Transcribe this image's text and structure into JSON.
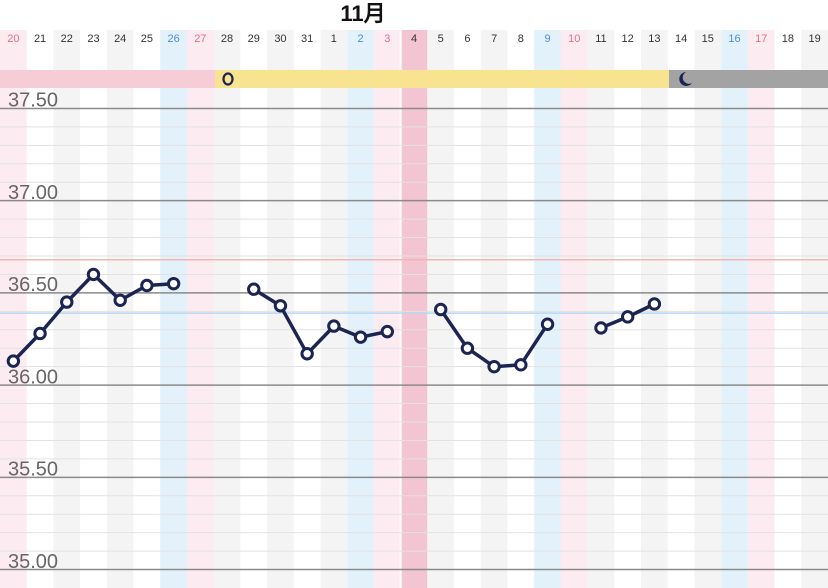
{
  "chart_data": {
    "type": "line",
    "month_label": "11月",
    "categories": [
      "20",
      "21",
      "22",
      "23",
      "24",
      "25",
      "26",
      "27",
      "28",
      "29",
      "30",
      "31",
      "1",
      "2",
      "3",
      "4",
      "5",
      "6",
      "7",
      "8",
      "9",
      "10",
      "11",
      "12",
      "13",
      "14",
      "15",
      "16",
      "17",
      "18",
      "19"
    ],
    "day_kinds": [
      "sun",
      "weekday",
      "weekday",
      "weekday",
      "weekday",
      "weekday",
      "sat",
      "sun",
      "weekday",
      "weekday",
      "weekday",
      "weekday",
      "weekday",
      "sat",
      "sun",
      "weekday",
      "weekday",
      "weekday",
      "weekday",
      "weekday",
      "sat",
      "sun",
      "weekday",
      "weekday",
      "weekday",
      "weekday",
      "weekday",
      "sat",
      "sun",
      "weekday",
      "weekday"
    ],
    "highlight_category": "4",
    "series": [
      {
        "color": "#1c2452",
        "values": [
          36.13,
          36.28,
          36.45,
          36.6,
          36.46,
          36.54,
          36.55,
          null,
          null,
          36.52,
          36.43,
          36.17,
          36.32,
          36.26,
          36.29,
          null,
          36.41,
          36.2,
          36.1,
          36.11,
          36.33,
          null,
          36.31,
          36.37,
          36.44,
          null,
          null,
          null,
          null,
          null,
          null
        ]
      }
    ],
    "ylim": [
      34.9,
      37.6
    ],
    "yticks": [
      {
        "value": 35,
        "label": "35.00"
      },
      {
        "value": 35.5,
        "label": "35.50"
      },
      {
        "value": 36,
        "label": "36.00"
      },
      {
        "value": 36.5,
        "label": "36.50"
      },
      {
        "value": 37,
        "label": "37.00"
      },
      {
        "value": 37.5,
        "label": "37.50"
      }
    ],
    "minor_yticks": [
      35.1,
      35.2,
      35.3,
      35.4,
      35.6,
      35.7,
      35.8,
      35.9,
      36.1,
      36.2,
      36.3,
      36.4,
      36.6,
      36.7,
      36.8,
      36.9,
      37.1,
      37.2,
      37.3,
      37.4
    ],
    "reference_lines": [
      {
        "value": 36.68,
        "color": "#f0b8b0"
      },
      {
        "value": 36.39,
        "color": "#b8d8f4"
      }
    ],
    "grid": true
  }
}
